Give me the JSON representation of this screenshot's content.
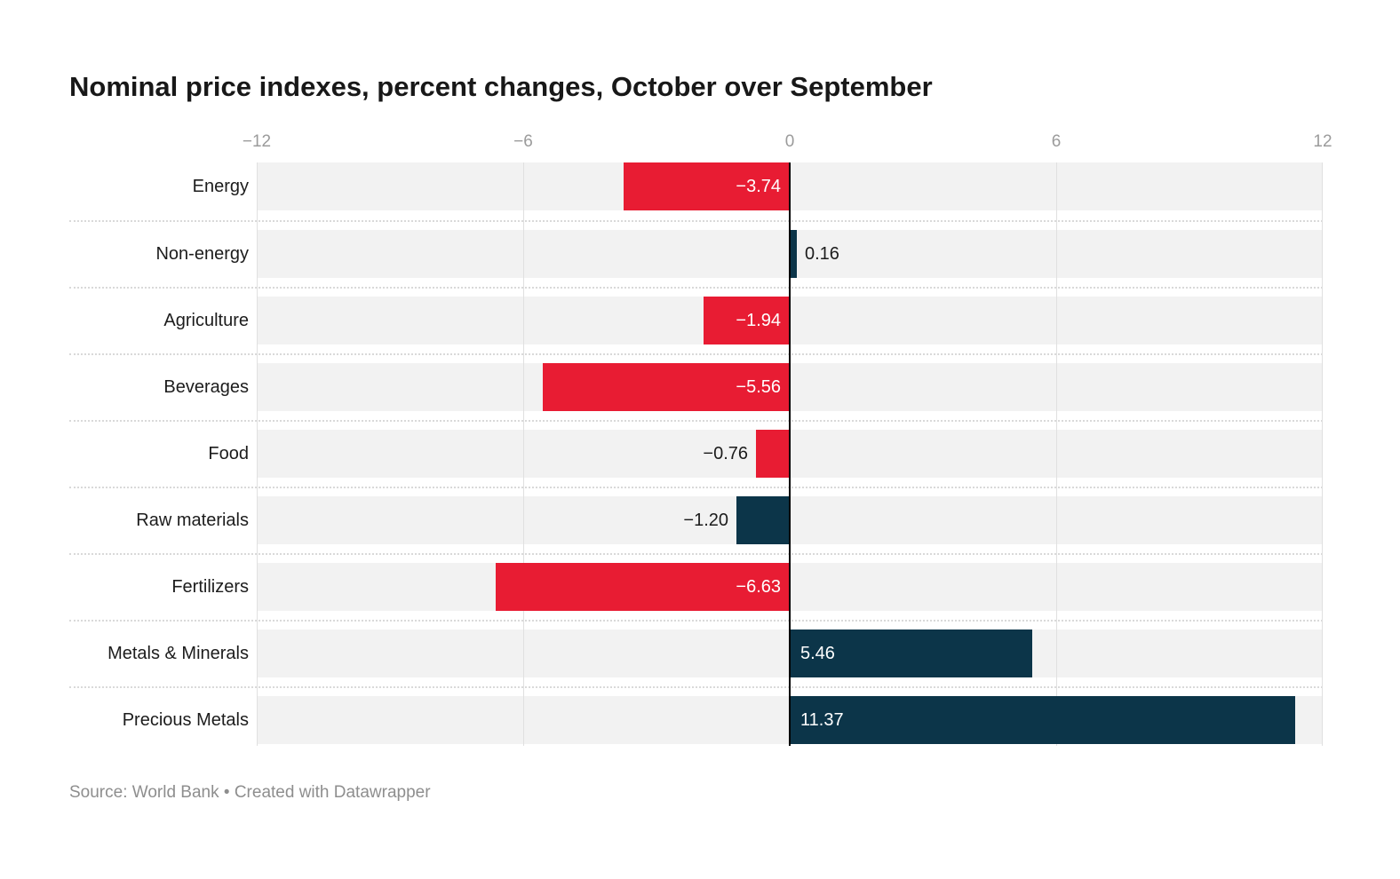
{
  "page": {
    "title": "Nominal price indexes, percent changes, October over September",
    "source_note": "Source: World Bank • Created with Datawrapper"
  },
  "chart_data": {
    "type": "bar",
    "orientation": "horizontal",
    "title": "Nominal price indexes, percent changes, October over September",
    "xlabel": "",
    "ylabel": "",
    "x_axis": {
      "min": -12,
      "max": 12,
      "grid": true,
      "tick_values": [
        -12,
        -6,
        0,
        6,
        12
      ],
      "tick_labels": [
        "−12",
        "−6",
        "0",
        "6",
        "12"
      ]
    },
    "categories": [
      "Energy",
      "Non-energy",
      "Agriculture",
      "Beverages",
      "Food",
      "Raw materials",
      "Fertilizers",
      "Metals & Minerals",
      "Precious Metals"
    ],
    "values": [
      -3.74,
      0.16,
      -1.94,
      -5.56,
      -0.76,
      -1.2,
      -6.63,
      5.46,
      11.37
    ],
    "display_values": [
      "−3.74",
      "0.16",
      "−1.94",
      "−5.56",
      "−0.76",
      "−1.20",
      "−6.63",
      "5.46",
      "11.37"
    ],
    "bar_colors": [
      "#e81c33",
      "#0c3549",
      "#e81c33",
      "#e81c33",
      "#e81c33",
      "#0c3549",
      "#e81c33",
      "#0c3549",
      "#0c3549"
    ],
    "palette": {
      "negative_red": "#e81c33",
      "navy": "#0c3549",
      "band_gray": "#f2f2f2",
      "gridline_gray": "#e0e0e0",
      "zero_line_black": "#000000",
      "tick_text_gray": "#9b9b9b",
      "label_text": "#1c1c1c",
      "source_text_gray": "#8e8e8e"
    },
    "legend": "none",
    "value_labels_shown": true
  }
}
